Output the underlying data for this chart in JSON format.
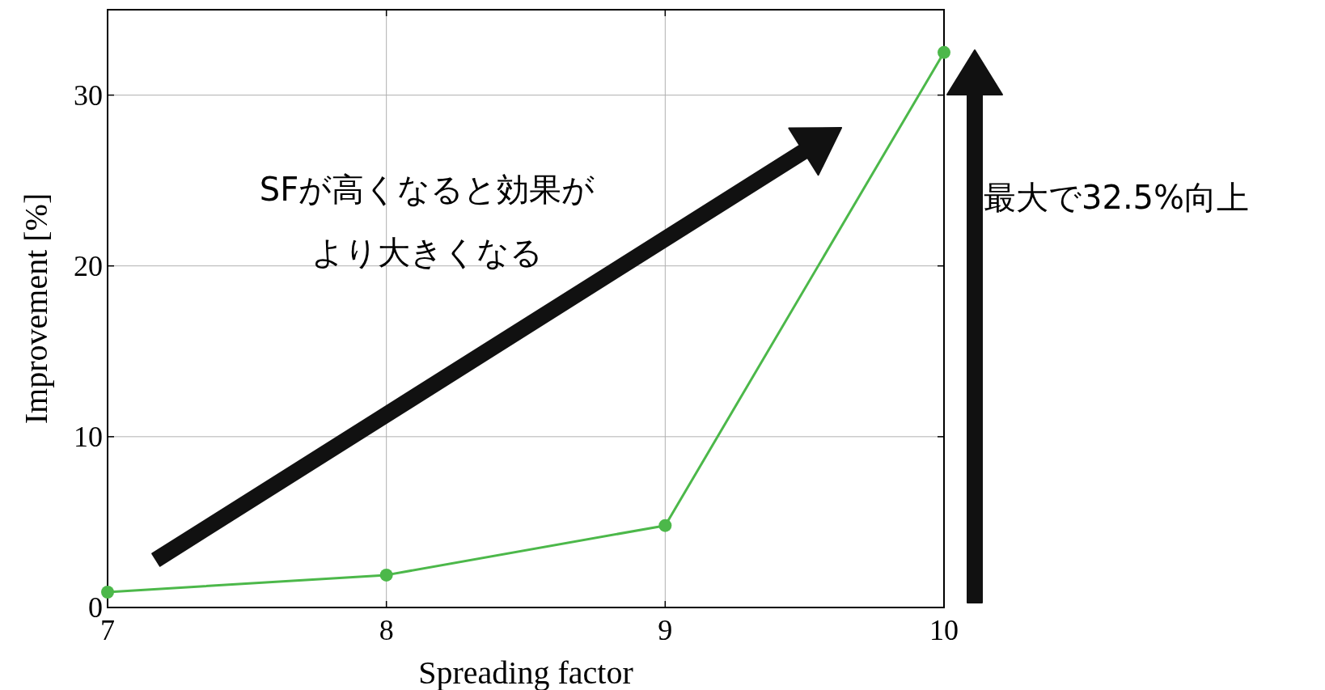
{
  "chart_data": {
    "type": "line",
    "xlabel": "Spreading factor",
    "ylabel": "Improvement [%]",
    "x": [
      7,
      8,
      9,
      10
    ],
    "series": [
      {
        "color": "#4cb84a",
        "values": [
          0.9,
          1.9,
          4.8,
          32.5
        ]
      }
    ],
    "xlim": [
      7,
      10
    ],
    "xticks": [
      7,
      8,
      9,
      10
    ],
    "ylim": [
      0,
      35
    ],
    "yticks": [
      0,
      10,
      20,
      30
    ],
    "grid": true,
    "marker": "circle",
    "line_style": "solid",
    "annotations": [
      "SFが高くなると効果が",
      "より大きくなる",
      "最大で32.5%向上"
    ]
  }
}
